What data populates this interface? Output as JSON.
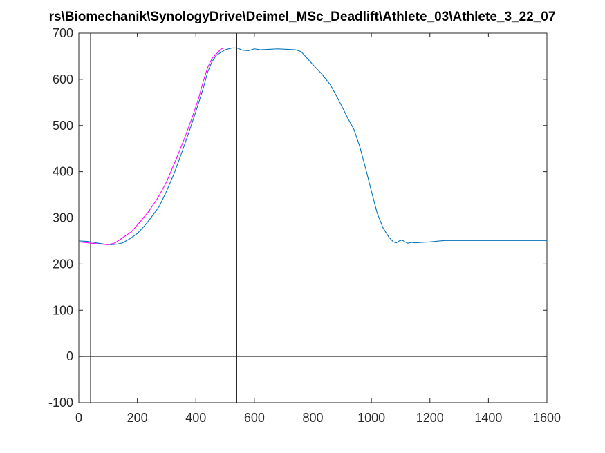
{
  "chart_data": {
    "type": "line",
    "title": "rs\\Biomechanik\\SynologyDrive\\Deimel_MSc_Deadlift\\Athlete_03\\Athlete_3_22_07",
    "xlabel": "",
    "ylabel": "",
    "xlim": [
      0,
      1600
    ],
    "ylim": [
      -100,
      700
    ],
    "xticks": [
      0,
      200,
      400,
      600,
      800,
      1000,
      1200,
      1400,
      1600
    ],
    "yticks": [
      -100,
      0,
      100,
      200,
      300,
      400,
      500,
      600,
      700
    ],
    "grid": false,
    "reference_lines": {
      "vertical": [
        40,
        540
      ],
      "horizontal": [
        0
      ]
    },
    "series": [
      {
        "color": "#0072BD",
        "points": [
          [
            0,
            250
          ],
          [
            30,
            249
          ],
          [
            60,
            246
          ],
          [
            90,
            243
          ],
          [
            110,
            242
          ],
          [
            130,
            243
          ],
          [
            150,
            246
          ],
          [
            175,
            255
          ],
          [
            200,
            266
          ],
          [
            225,
            283
          ],
          [
            250,
            303
          ],
          [
            275,
            325
          ],
          [
            300,
            358
          ],
          [
            325,
            395
          ],
          [
            350,
            438
          ],
          [
            375,
            483
          ],
          [
            400,
            530
          ],
          [
            425,
            580
          ],
          [
            440,
            615
          ],
          [
            455,
            638
          ],
          [
            470,
            652
          ],
          [
            485,
            658
          ],
          [
            500,
            664
          ],
          [
            525,
            668
          ],
          [
            540,
            668
          ],
          [
            560,
            663
          ],
          [
            580,
            662
          ],
          [
            600,
            666
          ],
          [
            620,
            664
          ],
          [
            650,
            665
          ],
          [
            680,
            666
          ],
          [
            710,
            665
          ],
          [
            740,
            664
          ],
          [
            760,
            660
          ],
          [
            780,
            646
          ],
          [
            800,
            632
          ],
          [
            830,
            612
          ],
          [
            860,
            588
          ],
          [
            890,
            553
          ],
          [
            920,
            515
          ],
          [
            940,
            492
          ],
          [
            960,
            455
          ],
          [
            980,
            408
          ],
          [
            1000,
            358
          ],
          [
            1020,
            310
          ],
          [
            1040,
            278
          ],
          [
            1060,
            258
          ],
          [
            1075,
            248
          ],
          [
            1085,
            246
          ],
          [
            1095,
            250
          ],
          [
            1105,
            252
          ],
          [
            1115,
            248
          ],
          [
            1125,
            245
          ],
          [
            1135,
            247
          ],
          [
            1150,
            246
          ],
          [
            1175,
            247
          ],
          [
            1200,
            248
          ],
          [
            1250,
            251
          ],
          [
            1300,
            251
          ],
          [
            1400,
            251
          ],
          [
            1500,
            251
          ],
          [
            1600,
            251
          ]
        ]
      },
      {
        "color": "#FF00FF",
        "points": [
          [
            0,
            248
          ],
          [
            30,
            246
          ],
          [
            60,
            244
          ],
          [
            100,
            242
          ],
          [
            125,
            246
          ],
          [
            150,
            257
          ],
          [
            180,
            270
          ],
          [
            210,
            292
          ],
          [
            240,
            315
          ],
          [
            270,
            343
          ],
          [
            300,
            378
          ],
          [
            330,
            423
          ],
          [
            360,
            470
          ],
          [
            390,
            522
          ],
          [
            410,
            560
          ],
          [
            425,
            595
          ],
          [
            440,
            625
          ],
          [
            455,
            645
          ],
          [
            470,
            655
          ],
          [
            485,
            665
          ],
          [
            495,
            668
          ]
        ]
      }
    ]
  }
}
